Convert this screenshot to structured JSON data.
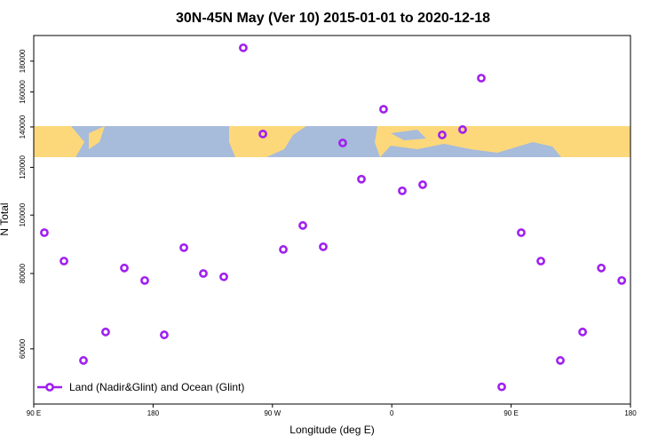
{
  "chart_data": {
    "type": "scatter",
    "title": "30N-45N May (Ver 10)   2015-01-01 to 2020-12-18",
    "x_label": "Longitude (deg E)",
    "y_label": "N Total",
    "y_log": true,
    "color": "#a020f0",
    "legend_position": "bottom-left",
    "xlim": [
      90,
      540
    ],
    "ylim": [
      48600,
      198500
    ],
    "xticks": [
      {
        "value": 90,
        "label": "90 E"
      },
      180,
      {
        "value": 270,
        "label": "90 W"
      },
      {
        "value": 360,
        "label": "0"
      },
      {
        "value": 450,
        "label": "90 E"
      },
      {
        "value": 540,
        "label": "180"
      }
    ],
    "yticks": [
      60000,
      80000,
      100000,
      120000,
      140000,
      160000,
      180000
    ],
    "series": [
      {
        "name": "Land (Nadir&Glint) and Ocean (Glint)",
        "color": "#a020f0",
        "x": [
          98.0,
          112.8,
          127.5,
          144.2,
          158.3,
          173.7,
          188.4,
          203.2,
          217.9,
          233.3,
          248.0,
          262.8,
          278.2,
          292.9,
          308.3,
          323.0,
          337.1,
          353.8,
          367.9,
          383.3,
          398.0,
          413.4,
          427.5,
          442.9,
          457.6,
          472.4,
          487.1,
          503.9,
          518.0,
          533.4
        ],
        "values": [
          93500,
          83900,
          57400,
          64000,
          81700,
          77900,
          63300,
          88300,
          80000,
          79000,
          189400,
          136300,
          87700,
          96100,
          88600,
          131700,
          114700,
          149800,
          109700,
          112300,
          135800,
          138600,
          168700,
          51900,
          93500,
          83900,
          57400,
          64000,
          81700,
          77900
        ]
      }
    ]
  }
}
